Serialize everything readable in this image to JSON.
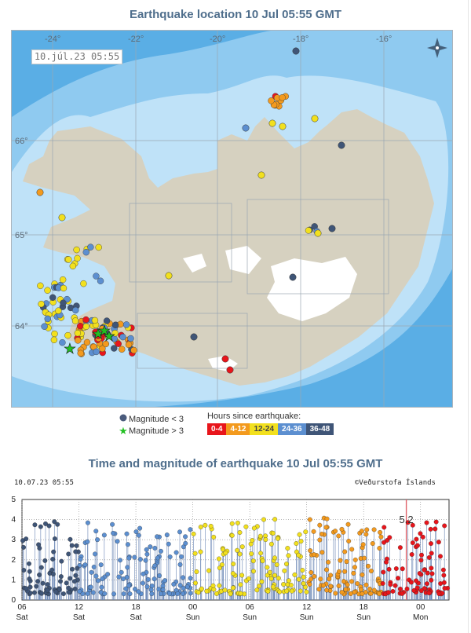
{
  "map_title": "Earthquake location   10 Jul 05:55 GMT",
  "map_timestamp": "10.júl.23  05:55",
  "graticule": {
    "longitudes": [
      "-24°",
      "-22°",
      "-20°",
      "-18°",
      "-16°"
    ],
    "latitudes": [
      "66°",
      "65°",
      "64°"
    ]
  },
  "legend": {
    "small_label": "Magnitude < 3",
    "large_label": "Magnitude > 3",
    "hours_title": "Hours since earthquake:",
    "hours_classes": [
      {
        "label": "0-4",
        "color": "#e8151b"
      },
      {
        "label": "4-12",
        "color": "#f39a1e"
      },
      {
        "label": "12-24",
        "color": "#f2e01e"
      },
      {
        "label": "24-36",
        "color": "#5c8fd0"
      },
      {
        "label": "36-48",
        "color": "#3f5577"
      }
    ]
  },
  "colors": {
    "land": "#d6d1c0",
    "glacier": "#ffffff",
    "shallow_sea": "#bfe2f8",
    "mid_sea": "#8fcaf0",
    "deep_sea": "#5aaee5",
    "title": "#4f6e8c"
  },
  "chart_title": "Time and magnitude of earthquake   10 Jul 05:55 GMT",
  "chart_timestamp": "10.07.23 05:55",
  "chart_credit": "©Veðurstofa Íslands",
  "chart_data": {
    "type": "scatter",
    "ylim": [
      0,
      5
    ],
    "y_ticks": [
      "0",
      "1",
      "2",
      "3",
      "4",
      "5"
    ],
    "x_ticks": [
      {
        "hour": "06",
        "day": "Sat",
        "t": 0
      },
      {
        "hour": "12",
        "day": "Sat",
        "t": 6
      },
      {
        "hour": "18",
        "day": "Sat",
        "t": 12
      },
      {
        "hour": "00",
        "day": "Sun",
        "t": 18
      },
      {
        "hour": "06",
        "day": "Sun",
        "t": 24
      },
      {
        "hour": "12",
        "day": "Sun",
        "t": 30
      },
      {
        "hour": "18",
        "day": "Sun",
        "t": 36
      },
      {
        "hour": "00",
        "day": "Mon",
        "t": 42
      }
    ],
    "annotation": {
      "label": "5.2",
      "t": 40.5,
      "magnitude": 5.2
    }
  }
}
